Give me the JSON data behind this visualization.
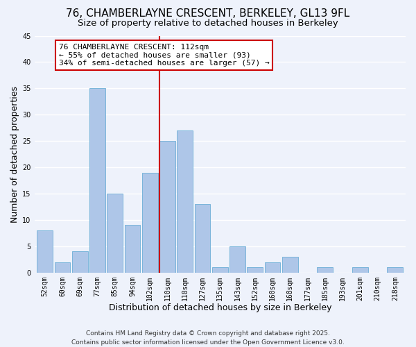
{
  "title": "76, CHAMBERLAYNE CRESCENT, BERKELEY, GL13 9FL",
  "subtitle": "Size of property relative to detached houses in Berkeley",
  "xlabel": "Distribution of detached houses by size in Berkeley",
  "ylabel": "Number of detached properties",
  "bin_labels": [
    "52sqm",
    "60sqm",
    "69sqm",
    "77sqm",
    "85sqm",
    "94sqm",
    "102sqm",
    "110sqm",
    "118sqm",
    "127sqm",
    "135sqm",
    "143sqm",
    "152sqm",
    "160sqm",
    "168sqm",
    "177sqm",
    "185sqm",
    "193sqm",
    "201sqm",
    "210sqm",
    "218sqm"
  ],
  "bar_heights": [
    8,
    2,
    4,
    35,
    15,
    9,
    19,
    25,
    27,
    13,
    1,
    5,
    1,
    2,
    3,
    0,
    1,
    0,
    1,
    0,
    1
  ],
  "bar_color": "#aec6e8",
  "bar_edge_color": "#6baed6",
  "vline_x_index": 7,
  "vline_color": "#cc0000",
  "annotation_text": "76 CHAMBERLAYNE CRESCENT: 112sqm\n← 55% of detached houses are smaller (93)\n34% of semi-detached houses are larger (57) →",
  "annotation_box_edge": "#cc0000",
  "annotation_box_face": "#ffffff",
  "ylim": [
    0,
    45
  ],
  "yticks": [
    0,
    5,
    10,
    15,
    20,
    25,
    30,
    35,
    40,
    45
  ],
  "footnote": "Contains HM Land Registry data © Crown copyright and database right 2025.\nContains public sector information licensed under the Open Government Licence v3.0.",
  "background_color": "#eef2fb",
  "grid_color": "#ffffff",
  "title_fontsize": 11,
  "subtitle_fontsize": 9.5,
  "axis_label_fontsize": 9,
  "tick_fontsize": 7,
  "annotation_fontsize": 8,
  "footnote_fontsize": 6.5
}
